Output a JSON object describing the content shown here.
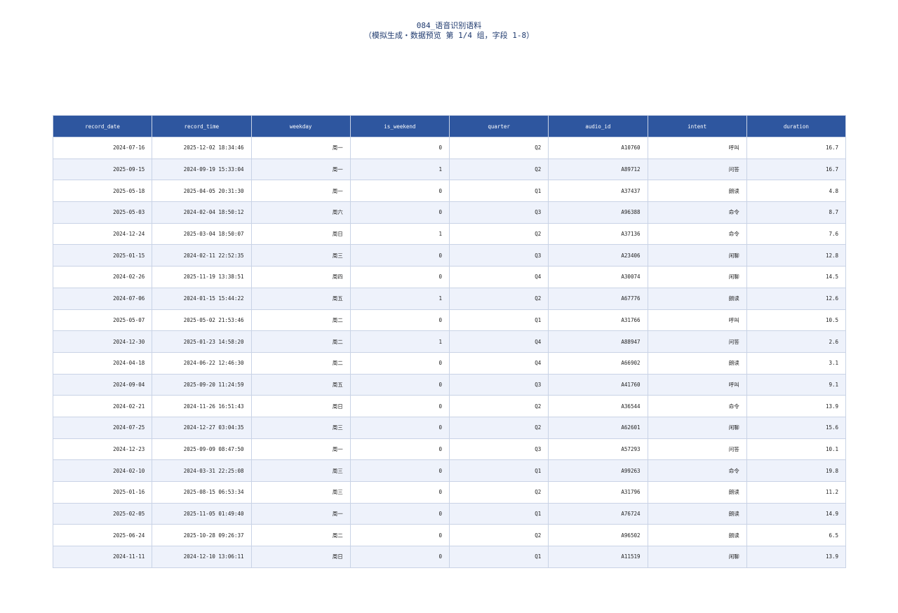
{
  "header": {
    "title": "084_语音识别语料",
    "subtitle": "（模拟生成・数据预览 第 1/4 组，字段 1-8）"
  },
  "table": {
    "columns": [
      "record_date",
      "record_time",
      "weekday",
      "is_weekend",
      "quarter",
      "audio_id",
      "intent",
      "duration"
    ],
    "rows": [
      [
        "2024-07-16",
        "2025-12-02 18:34:46",
        "周一",
        0,
        "Q2",
        "A10760",
        "呼叫",
        16.7
      ],
      [
        "2025-09-15",
        "2024-09-19 15:33:04",
        "周一",
        1,
        "Q2",
        "A89712",
        "问答",
        16.7
      ],
      [
        "2025-05-18",
        "2025-04-05 20:31:30",
        "周一",
        0,
        "Q1",
        "A37437",
        "朗读",
        4.8
      ],
      [
        "2025-05-03",
        "2024-02-04 18:50:12",
        "周六",
        0,
        "Q3",
        "A96388",
        "命令",
        8.7
      ],
      [
        "2024-12-24",
        "2025-03-04 18:50:07",
        "周日",
        1,
        "Q2",
        "A37136",
        "命令",
        7.6
      ],
      [
        "2025-01-15",
        "2024-02-11 22:52:35",
        "周三",
        0,
        "Q3",
        "A23406",
        "闲聊",
        12.8
      ],
      [
        "2024-02-26",
        "2025-11-19 13:38:51",
        "周四",
        0,
        "Q4",
        "A30074",
        "闲聊",
        14.5
      ],
      [
        "2024-07-06",
        "2024-01-15 15:44:22",
        "周五",
        1,
        "Q2",
        "A67776",
        "朗读",
        12.6
      ],
      [
        "2025-05-07",
        "2025-05-02 21:53:46",
        "周二",
        0,
        "Q1",
        "A31766",
        "呼叫",
        10.5
      ],
      [
        "2024-12-30",
        "2025-01-23 14:58:20",
        "周二",
        1,
        "Q4",
        "A88947",
        "问答",
        2.6
      ],
      [
        "2024-04-18",
        "2024-06-22 12:46:30",
        "周二",
        0,
        "Q4",
        "A66902",
        "朗读",
        3.1
      ],
      [
        "2024-09-04",
        "2025-09-20 11:24:59",
        "周五",
        0,
        "Q3",
        "A41760",
        "呼叫",
        9.1
      ],
      [
        "2024-02-21",
        "2024-11-26 16:51:43",
        "周日",
        0,
        "Q2",
        "A36544",
        "命令",
        13.9
      ],
      [
        "2024-07-25",
        "2024-12-27 03:04:35",
        "周三",
        0,
        "Q2",
        "A62601",
        "闲聊",
        15.6
      ],
      [
        "2024-12-23",
        "2025-09-09 08:47:50",
        "周一",
        0,
        "Q3",
        "A57293",
        "问答",
        10.1
      ],
      [
        "2024-02-10",
        "2024-03-31 22:25:08",
        "周三",
        0,
        "Q1",
        "A99263",
        "命令",
        19.8
      ],
      [
        "2025-01-16",
        "2025-08-15 06:53:34",
        "周三",
        0,
        "Q2",
        "A31796",
        "朗读",
        11.2
      ],
      [
        "2025-02-05",
        "2025-11-05 01:49:40",
        "周一",
        0,
        "Q1",
        "A76724",
        "朗读",
        14.9
      ],
      [
        "2025-06-24",
        "2025-10-28 09:26:37",
        "周二",
        0,
        "Q2",
        "A96502",
        "朗读",
        6.5
      ],
      [
        "2024-11-11",
        "2024-12-10 13:06:11",
        "周日",
        0,
        "Q1",
        "A11519",
        "闲聊",
        13.9
      ]
    ]
  }
}
